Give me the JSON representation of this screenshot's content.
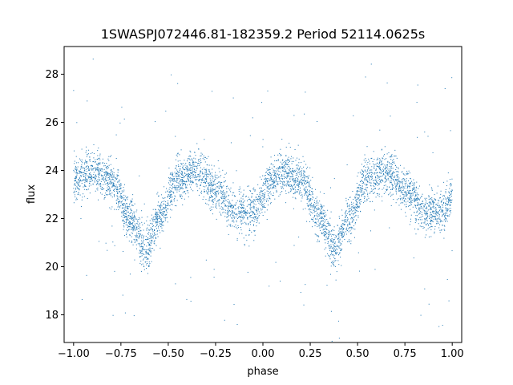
{
  "chart_data": {
    "type": "scatter",
    "title": "1SWASPJ072446.81-182359.2 Period 52114.0625s",
    "xlabel": "phase",
    "ylabel": "flux",
    "xlim": [
      -1.05,
      1.05
    ],
    "ylim": [
      16.85,
      29.15
    ],
    "xticks": [
      -1.0,
      -0.75,
      -0.5,
      -0.25,
      0.0,
      0.25,
      0.5,
      0.75,
      1.0
    ],
    "xtick_labels": [
      "−1.00",
      "−0.75",
      "−0.50",
      "−0.25",
      "0.00",
      "0.25",
      "0.50",
      "0.75",
      "1.00"
    ],
    "yticks": [
      18,
      20,
      22,
      24,
      26,
      28
    ],
    "ytick_labels": [
      "18",
      "20",
      "22",
      "24",
      "26",
      "28"
    ],
    "grid": false,
    "marker_color": "#1f77b4",
    "series": [
      {
        "profile": {
          "phase": [
            -1.0,
            -0.9,
            -0.8,
            -0.7,
            -0.62,
            -0.55,
            -0.45,
            -0.35,
            -0.25,
            -0.15,
            -0.05,
            0.05,
            0.1,
            0.2,
            0.3,
            0.38,
            0.45,
            0.55,
            0.65,
            0.75,
            0.85,
            0.95,
            1.0
          ],
          "flux": [
            23.6,
            24.0,
            23.6,
            22.0,
            20.7,
            22.0,
            23.6,
            24.0,
            23.2,
            22.3,
            22.3,
            23.6,
            24.0,
            23.6,
            22.0,
            20.7,
            22.0,
            23.6,
            24.0,
            23.2,
            22.3,
            22.3,
            23.0
          ]
        },
        "scatter_sd": 0.45,
        "n_points": 5000
      }
    ]
  }
}
